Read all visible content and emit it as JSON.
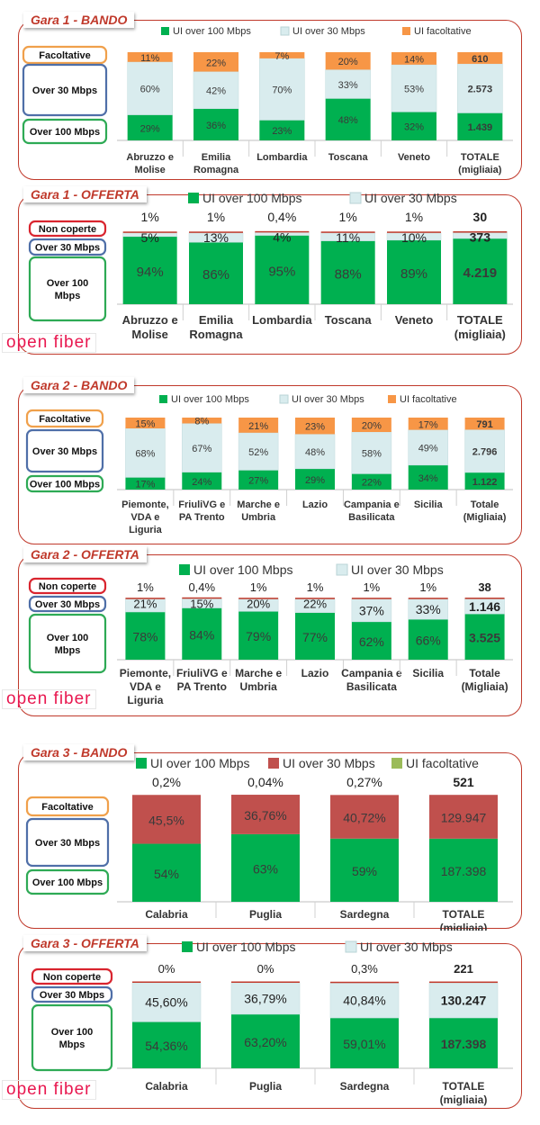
{
  "colors": {
    "green": "#00b050",
    "lightblue": "#d9ecee",
    "orange": "#f79646",
    "darkred": "#c0504d",
    "olive": "#9bbb59",
    "frame": "#c0392b"
  },
  "logo_text": "open fiber",
  "chart_data": [
    {
      "type": "bar",
      "panel_title": "Gara 1 - BANDO",
      "legend": [
        "UI over 100 Mbps",
        "UI over 30 Mbps",
        "UI facoltative"
      ],
      "categories": [
        "Abruzzo e Molise",
        "Emilia Romagna",
        "Lombardia",
        "Toscana",
        "Veneto",
        "TOTALE (migliaia)"
      ],
      "series": [
        {
          "name": "UI over 100 Mbps",
          "values": [
            29,
            36,
            23,
            48,
            32,
            1439
          ],
          "labels": [
            "29%",
            "36%",
            "23%",
            "48%",
            "32%",
            "1.439"
          ]
        },
        {
          "name": "UI over 30 Mbps",
          "values": [
            60,
            42,
            70,
            33,
            53,
            2573
          ],
          "labels": [
            "60%",
            "42%",
            "70%",
            "33%",
            "53%",
            "2.573"
          ]
        },
        {
          "name": "UI facoltative",
          "values": [
            11,
            22,
            7,
            20,
            14,
            610
          ],
          "labels": [
            "11%",
            "22%",
            "7%",
            "20%",
            "14%",
            "610"
          ]
        }
      ],
      "side_labels": [
        "Facoltative",
        "Over 30 Mbps",
        "Over 100 Mbps"
      ]
    },
    {
      "type": "bar",
      "panel_title": "Gara 1 - OFFERTA",
      "legend": [
        "UI over 100 Mbps",
        "UI over 30 Mbps"
      ],
      "categories": [
        "Abruzzo e Molise",
        "Emilia Romagna",
        "Lombardia",
        "Toscana",
        "Veneto",
        "TOTALE (migliaia)"
      ],
      "series": [
        {
          "name": "UI over 100 Mbps",
          "values": [
            94,
            86,
            95,
            88,
            89,
            4219
          ],
          "labels": [
            "94%",
            "86%",
            "95%",
            "88%",
            "89%",
            "4.219"
          ]
        },
        {
          "name": "UI over 30 Mbps",
          "values": [
            5,
            13,
            4,
            11,
            10,
            373
          ],
          "labels": [
            "5%",
            "13%",
            "4%",
            "11%",
            "10%",
            "373"
          ]
        },
        {
          "name": "Non coperte",
          "values": [
            1,
            1,
            0.4,
            1,
            1,
            30
          ],
          "labels": [
            "1%",
            "1%",
            "0,4%",
            "1%",
            "1%",
            "30"
          ]
        }
      ],
      "side_labels": [
        "Non coperte",
        "Over 30 Mbps",
        "Over 100 Mbps"
      ]
    },
    {
      "type": "bar",
      "panel_title": "Gara 2 - BANDO",
      "legend": [
        "UI over 100 Mbps",
        "UI over 30 Mbps",
        "UI facoltative"
      ],
      "categories": [
        "Piemonte, VDA e Liguria",
        "FriuliVG e PA Trento",
        "Marche e Umbria",
        "Lazio",
        "Campania e Basilicata",
        "Sicilia",
        "Totale (Migliaia)"
      ],
      "series": [
        {
          "name": "UI over 100 Mbps",
          "values": [
            17,
            24,
            27,
            29,
            22,
            34,
            1122
          ],
          "labels": [
            "17%",
            "24%",
            "27%",
            "29%",
            "22%",
            "34%",
            "1.122"
          ]
        },
        {
          "name": "UI over 30 Mbps",
          "values": [
            68,
            67,
            52,
            48,
            58,
            49,
            2796
          ],
          "labels": [
            "68%",
            "67%",
            "52%",
            "48%",
            "58%",
            "49%",
            "2.796"
          ]
        },
        {
          "name": "UI facoltative",
          "values": [
            15,
            8,
            21,
            23,
            20,
            17,
            791
          ],
          "labels": [
            "15%",
            "8%",
            "21%",
            "23%",
            "20%",
            "17%",
            "791"
          ]
        }
      ],
      "side_labels": [
        "Facoltative",
        "Over 30 Mbps",
        "Over 100 Mbps"
      ]
    },
    {
      "type": "bar",
      "panel_title": "Gara 2 - OFFERTA",
      "legend": [
        "UI over 100 Mbps",
        "UI over 30 Mbps"
      ],
      "categories": [
        "Piemonte, VDA e Liguria",
        "FriuliVG e PA Trento",
        "Marche e Umbria",
        "Lazio",
        "Campania e Basilicata",
        "Sicilia",
        "Totale (Migliaia)"
      ],
      "series": [
        {
          "name": "UI over 100 Mbps",
          "values": [
            78,
            84,
            79,
            77,
            62,
            66,
            3525
          ],
          "labels": [
            "78%",
            "84%",
            "79%",
            "77%",
            "62%",
            "66%",
            "3.525"
          ]
        },
        {
          "name": "UI over 30 Mbps",
          "values": [
            21,
            15,
            20,
            22,
            37,
            33,
            1146
          ],
          "labels": [
            "21%",
            "15%",
            "20%",
            "22%",
            "37%",
            "33%",
            "1.146"
          ]
        },
        {
          "name": "Non coperte",
          "values": [
            1,
            0.4,
            1,
            1,
            1,
            1,
            38
          ],
          "labels": [
            "1%",
            "0,4%",
            "1%",
            "1%",
            "1%",
            "1%",
            "38"
          ]
        }
      ],
      "side_labels": [
        "Non coperte",
        "Over 30 Mbps",
        "Over 100 Mbps"
      ]
    },
    {
      "type": "bar",
      "panel_title": "Gara 3 - BANDO",
      "legend": [
        "UI over 100 Mbps",
        "UI over 30 Mbps",
        "UI facoltative"
      ],
      "categories": [
        "Calabria",
        "Puglia",
        "Sardegna",
        "TOTALE (migliaia)"
      ],
      "series": [
        {
          "name": "UI over 100 Mbps",
          "values": [
            54,
            63,
            59,
            187398
          ],
          "labels": [
            "54%",
            "63%",
            "59%",
            "187.398"
          ]
        },
        {
          "name": "UI over 30 Mbps",
          "values": [
            45.5,
            36.76,
            40.72,
            129947
          ],
          "labels": [
            "45,5%",
            "36,76%",
            "40,72%",
            "129.947"
          ]
        },
        {
          "name": "UI facoltative",
          "values": [
            0.2,
            0.04,
            0.27,
            521
          ],
          "labels": [
            "0,2%",
            "0,04%",
            "0,27%",
            "521"
          ]
        }
      ],
      "side_labels": [
        "Facoltative",
        "Over 30 Mbps",
        "Over 100 Mbps"
      ]
    },
    {
      "type": "bar",
      "panel_title": "Gara 3 - OFFERTA",
      "legend": [
        "UI over 100 Mbps",
        "UI over 30 Mbps"
      ],
      "categories": [
        "Calabria",
        "Puglia",
        "Sardegna",
        "TOTALE (migliaia)"
      ],
      "series": [
        {
          "name": "UI over 100 Mbps",
          "values": [
            54.36,
            63.2,
            59.01,
            187398
          ],
          "labels": [
            "54,36%",
            "63,20%",
            "59,01%",
            "187.398"
          ]
        },
        {
          "name": "UI over 30 Mbps",
          "values": [
            45.6,
            36.79,
            40.84,
            130247
          ],
          "labels": [
            "45,60%",
            "36,79%",
            "40,84%",
            "130.247"
          ]
        },
        {
          "name": "Non coperte",
          "values": [
            0,
            0,
            0.3,
            221
          ],
          "labels": [
            "0%",
            "0%",
            "0,3%",
            "221"
          ]
        }
      ],
      "side_labels": [
        "Non coperte",
        "Over 30 Mbps",
        "Over 100 Mbps"
      ]
    }
  ]
}
